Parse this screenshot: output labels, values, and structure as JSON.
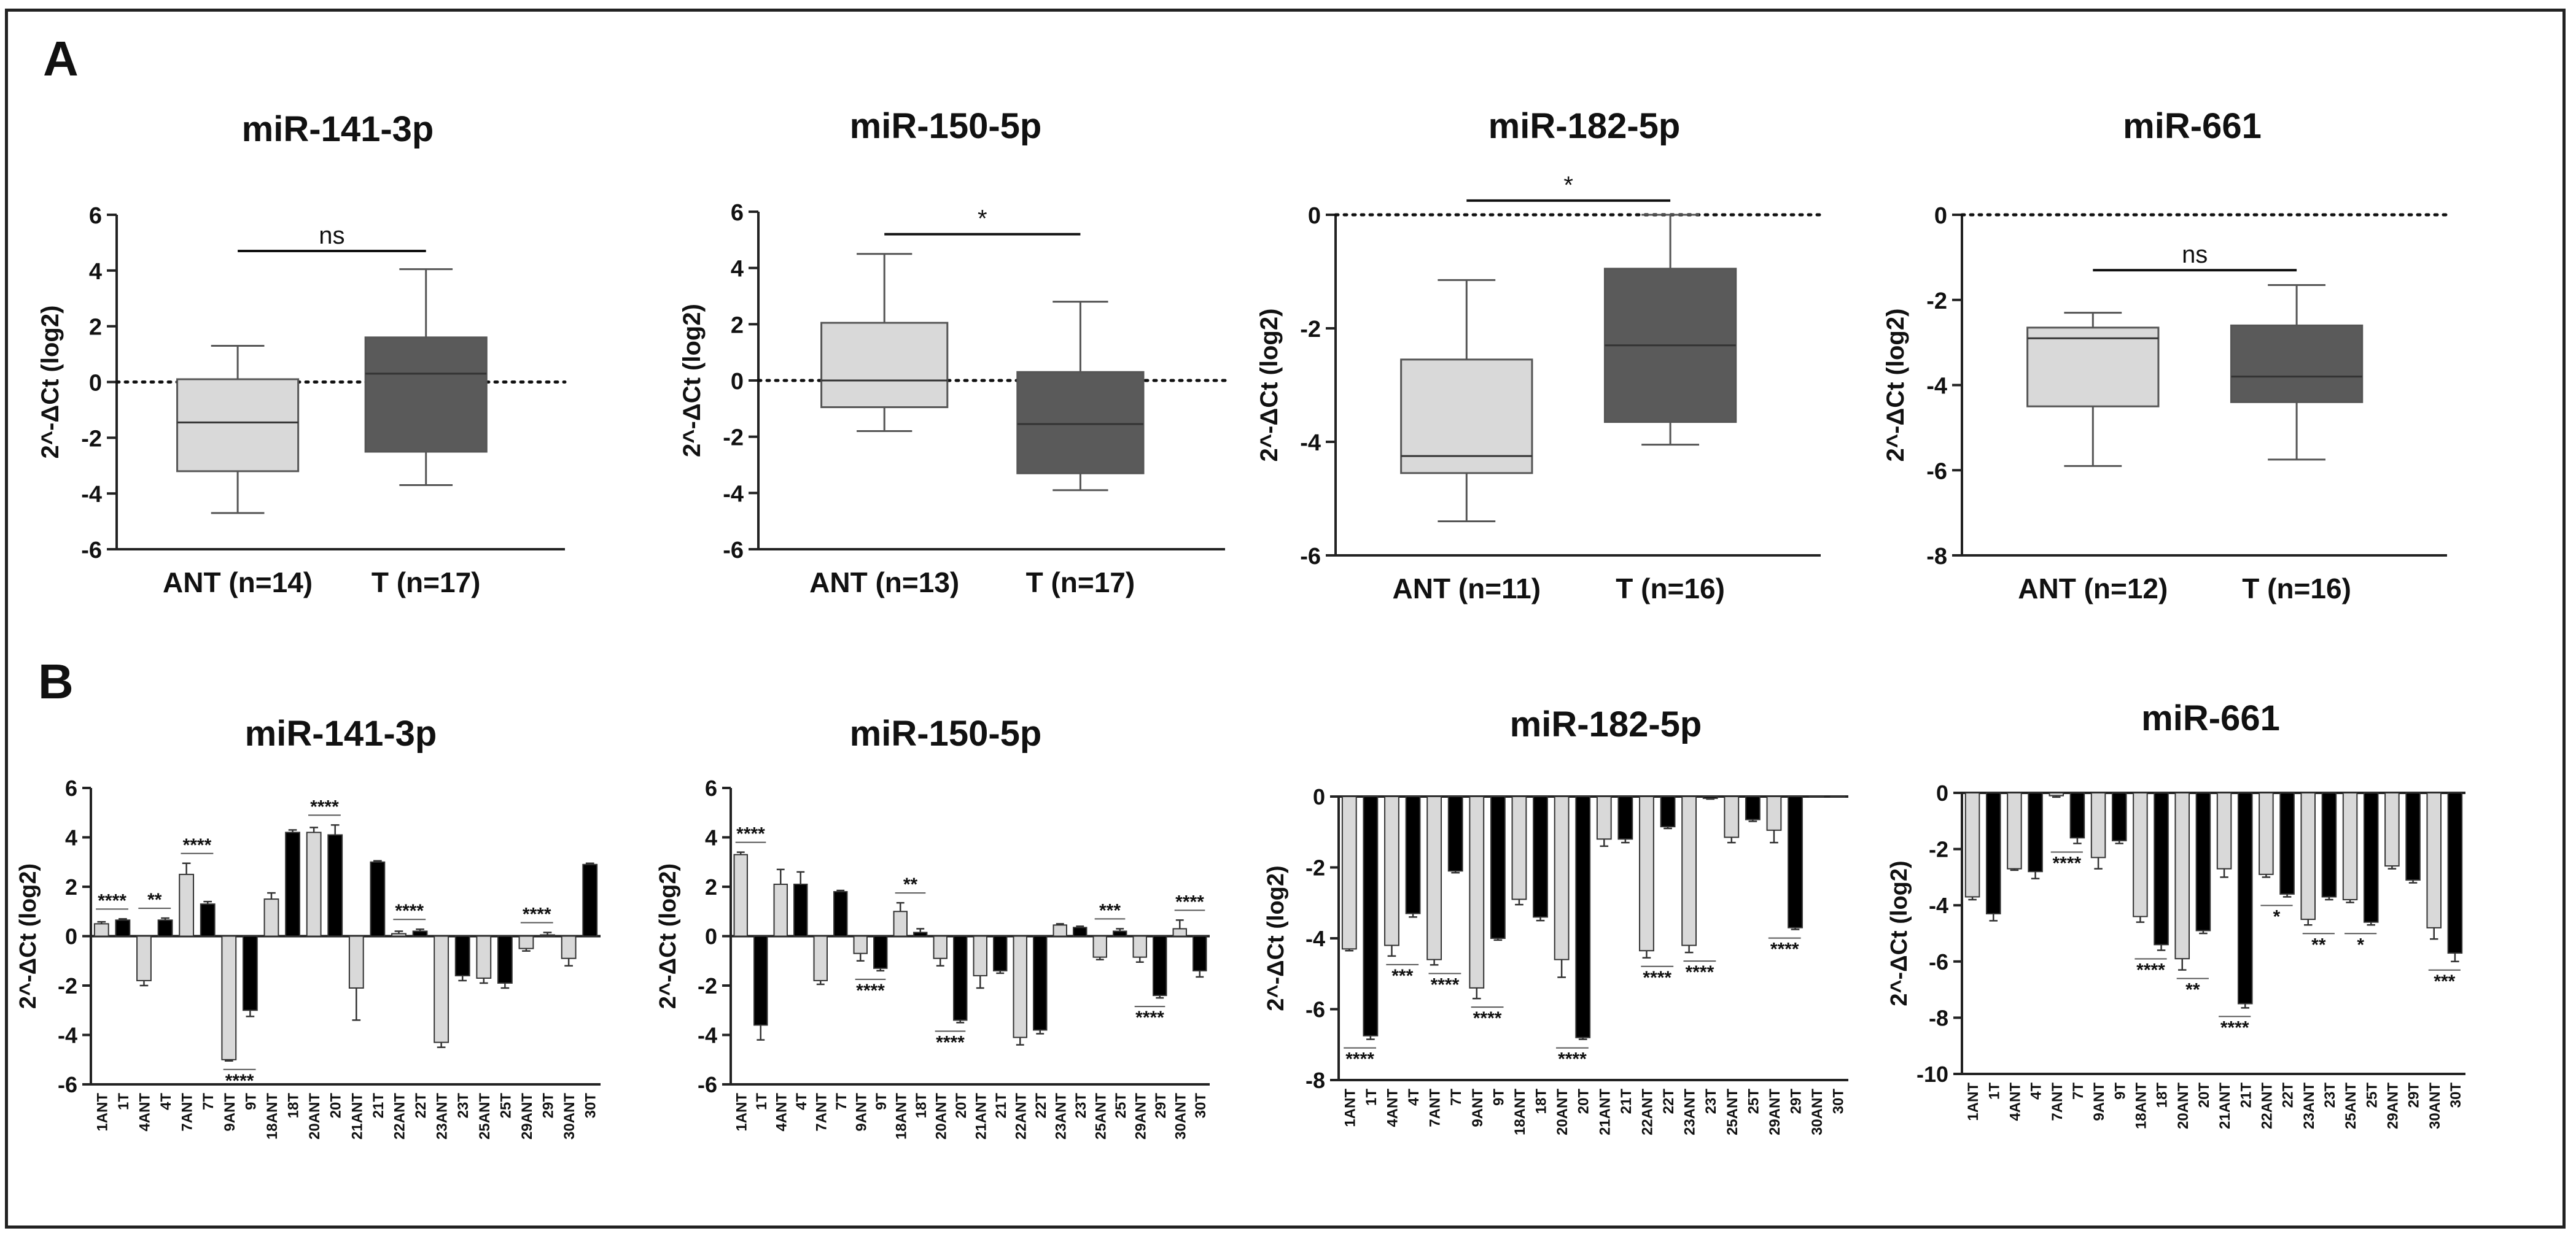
{
  "figure": {
    "panel_a_letter": "A",
    "panel_b_letter": "B",
    "y_axis_label": "2^-ΔCt (log2)"
  },
  "colors": {
    "ant_box": "#d9d9d9",
    "t_box": "#5a5a5a",
    "ant_bar": "#d9d9d9",
    "t_bar": "#000000",
    "axis": "#222222"
  },
  "chart_data": [
    {
      "type": "box",
      "panel": "A",
      "title": "miR-141-3p",
      "ylabel": "2^-ΔCt (log2)",
      "ylim": [
        -6,
        6
      ],
      "yticks": [
        6,
        4,
        2,
        0,
        -2,
        -4,
        -6
      ],
      "reference_line": 0,
      "categories": [
        "ANT (n=14)",
        "T (n=17)"
      ],
      "boxes": [
        {
          "name": "ANT (n=14)",
          "min": -4.7,
          "q1": -3.2,
          "median": -1.45,
          "q3": 0.1,
          "max": 1.3
        },
        {
          "name": "T (n=17)",
          "min": -3.7,
          "q1": -2.5,
          "median": 0.3,
          "q3": 1.6,
          "max": 4.05
        }
      ],
      "significance": {
        "label": "ns",
        "y": 4.7
      }
    },
    {
      "type": "box",
      "panel": "A",
      "title": "miR-150-5p",
      "ylabel": "2^-ΔCt (log2)",
      "ylim": [
        -6,
        6
      ],
      "yticks": [
        6,
        4,
        2,
        0,
        -2,
        -4,
        -6
      ],
      "reference_line": 0,
      "categories": [
        "ANT (n=13)",
        "T (n=17)"
      ],
      "boxes": [
        {
          "name": "ANT (n=13)",
          "min": -1.8,
          "q1": -0.95,
          "median": 0.0,
          "q3": 2.05,
          "max": 4.5
        },
        {
          "name": "T (n=17)",
          "min": -3.9,
          "q1": -3.3,
          "median": -1.55,
          "q3": 0.3,
          "max": 2.8
        }
      ],
      "significance": {
        "label": "*",
        "y": 5.2
      }
    },
    {
      "type": "box",
      "panel": "A",
      "title": "miR-182-5p",
      "ylabel": "2^-ΔCt (log2)",
      "ylim": [
        -6,
        0
      ],
      "yticks": [
        0,
        -2,
        -4,
        -6
      ],
      "reference_line": 0,
      "categories": [
        "ANT (n=11)",
        "T (n=16)"
      ],
      "boxes": [
        {
          "name": "ANT (n=11)",
          "min": -5.4,
          "q1": -4.55,
          "median": -4.25,
          "q3": -2.55,
          "max": -1.15
        },
        {
          "name": "T (n=16)",
          "min": -4.05,
          "q1": -3.65,
          "median": -2.3,
          "q3": -0.95,
          "max": 0.0
        }
      ],
      "significance": {
        "label": "*",
        "y": 0.25
      }
    },
    {
      "type": "box",
      "panel": "A",
      "title": "miR-661",
      "ylabel": "2^-ΔCt (log2)",
      "ylim": [
        -8,
        0
      ],
      "yticks": [
        0,
        -2,
        -4,
        -6,
        -8
      ],
      "reference_line": 0,
      "categories": [
        "ANT (n=12)",
        "T (n=16)"
      ],
      "boxes": [
        {
          "name": "ANT (n=12)",
          "min": -5.9,
          "q1": -4.5,
          "median": -2.9,
          "q3": -2.65,
          "max": -2.3
        },
        {
          "name": "T (n=16)",
          "min": -5.75,
          "q1": -4.4,
          "median": -3.8,
          "q3": -2.6,
          "max": -1.65
        }
      ],
      "significance": {
        "label": "ns",
        "y": -1.3
      }
    },
    {
      "type": "bar",
      "panel": "B",
      "title": "miR-141-3p",
      "ylabel": "2^-ΔCt (log2)",
      "ylim": [
        -6,
        6
      ],
      "yticks": [
        6,
        4,
        2,
        0,
        -2,
        -4,
        -6
      ],
      "categories": [
        "1ANT",
        "1T",
        "4ANT",
        "4T",
        "7ANT",
        "7T",
        "9ANT",
        "9T",
        "18ANT",
        "18T",
        "20ANT",
        "20T",
        "21ANT",
        "21T",
        "22ANT",
        "22T",
        "23ANT",
        "23T",
        "25ANT",
        "25T",
        "29ANT",
        "29T",
        "30ANT",
        "30T"
      ],
      "values": [
        0.5,
        0.65,
        -1.8,
        0.65,
        2.5,
        1.3,
        -5.0,
        -3.0,
        1.5,
        4.2,
        4.2,
        4.1,
        -2.1,
        3.0,
        0.1,
        0.2,
        -4.3,
        -1.6,
        -1.7,
        -1.9,
        -0.5,
        0.05,
        -0.9,
        2.9
      ],
      "errors": [
        0.08,
        0.05,
        0.2,
        0.08,
        0.45,
        0.1,
        0.05,
        0.25,
        0.25,
        0.1,
        0.2,
        0.4,
        1.3,
        0.05,
        0.1,
        0.08,
        0.2,
        0.2,
        0.2,
        0.2,
        0.1,
        0.1,
        0.3,
        0.05
      ],
      "significance": [
        {
          "pair": 1,
          "label": "****"
        },
        {
          "pair": 2,
          "label": "**"
        },
        {
          "pair": 3,
          "label": "****"
        },
        {
          "pair": 4,
          "label": "****"
        },
        {
          "pair": 6,
          "label": "****"
        },
        {
          "pair": 8,
          "label": "****"
        },
        {
          "pair": 11,
          "label": "****"
        }
      ]
    },
    {
      "type": "bar",
      "panel": "B",
      "title": "miR-150-5p",
      "ylabel": "2^-ΔCt (log2)",
      "ylim": [
        -6,
        6
      ],
      "yticks": [
        6,
        4,
        2,
        0,
        -2,
        -4,
        -6
      ],
      "categories": [
        "1ANT",
        "1T",
        "4ANT",
        "4T",
        "7ANT",
        "7T",
        "9ANT",
        "9T",
        "18ANT",
        "18T",
        "20ANT",
        "20T",
        "21ANT",
        "21T",
        "22ANT",
        "22T",
        "23ANT",
        "23T",
        "25ANT",
        "25T",
        "29ANT",
        "29T",
        "30ANT",
        "30T"
      ],
      "values": [
        3.3,
        -3.6,
        2.1,
        2.1,
        -1.8,
        1.8,
        -0.7,
        -1.3,
        1.0,
        0.15,
        -0.9,
        -3.4,
        -1.6,
        -1.4,
        -4.1,
        -3.8,
        0.45,
        0.35,
        -0.85,
        0.2,
        -0.85,
        -2.4,
        0.3,
        -1.4
      ],
      "errors": [
        0.1,
        0.6,
        0.6,
        0.5,
        0.15,
        0.05,
        0.3,
        0.1,
        0.35,
        0.15,
        0.3,
        0.1,
        0.5,
        0.1,
        0.3,
        0.15,
        0.05,
        0.05,
        0.1,
        0.1,
        0.2,
        0.1,
        0.35,
        0.25
      ],
      "significance": [
        {
          "pair": 1,
          "label": "****"
        },
        {
          "pair": 4,
          "label": "****"
        },
        {
          "pair": 5,
          "label": "**"
        },
        {
          "pair": 6,
          "label": "****"
        },
        {
          "pair": 10,
          "label": "***"
        },
        {
          "pair": 11,
          "label": "****"
        },
        {
          "pair": 12,
          "label": "****"
        }
      ]
    },
    {
      "type": "bar",
      "panel": "B",
      "title": "miR-182-5p",
      "ylabel": "2^-ΔCt (log2)",
      "ylim": [
        -8,
        0
      ],
      "yticks": [
        0,
        -2,
        -4,
        -6,
        -8
      ],
      "categories": [
        "1ANT",
        "1T",
        "4ANT",
        "4T",
        "7ANT",
        "7T",
        "9ANT",
        "9T",
        "18ANT",
        "18T",
        "20ANT",
        "20T",
        "21ANT",
        "21T",
        "22ANT",
        "22T",
        "23ANT",
        "23T",
        "25ANT",
        "25T",
        "29ANT",
        "29T",
        "30ANT",
        "30T"
      ],
      "values": [
        -4.3,
        -6.75,
        -4.2,
        -3.3,
        -4.6,
        -2.1,
        -5.4,
        -4.0,
        -2.9,
        -3.4,
        -4.6,
        -6.8,
        -1.2,
        -1.2,
        -4.35,
        -0.85,
        -4.2,
        -0.05,
        -1.15,
        -0.65,
        -0.95,
        -3.7,
        0,
        0
      ],
      "errors": [
        0.05,
        0.1,
        0.3,
        0.1,
        0.15,
        0.05,
        0.3,
        0.05,
        0.15,
        0.1,
        0.5,
        0.05,
        0.2,
        0.1,
        0.2,
        0.05,
        0.2,
        0.02,
        0.15,
        0.05,
        0.35,
        0.05,
        0,
        0
      ],
      "significance": [
        {
          "pair": 1,
          "label": "****"
        },
        {
          "pair": 2,
          "label": "***"
        },
        {
          "pair": 3,
          "label": "****"
        },
        {
          "pair": 4,
          "label": "****"
        },
        {
          "pair": 6,
          "label": "****"
        },
        {
          "pair": 8,
          "label": "****"
        },
        {
          "pair": 9,
          "label": "****"
        },
        {
          "pair": 11,
          "label": "****"
        }
      ]
    },
    {
      "type": "bar",
      "panel": "B",
      "title": "miR-661",
      "ylabel": "2^-ΔCt (log2)",
      "ylim": [
        -10,
        0
      ],
      "yticks": [
        0,
        -2,
        -4,
        -6,
        -8,
        -10
      ],
      "categories": [
        "1ANT",
        "1T",
        "4ANT",
        "4T",
        "7ANT",
        "7T",
        "9ANT",
        "9T",
        "18ANT",
        "18T",
        "20ANT",
        "20T",
        "21ANT",
        "21T",
        "22ANT",
        "22T",
        "23ANT",
        "23T",
        "25ANT",
        "25T",
        "29ANT",
        "29T",
        "30ANT",
        "30T"
      ],
      "values": [
        -3.7,
        -4.3,
        -2.7,
        -2.8,
        -0.1,
        -1.6,
        -2.3,
        -1.7,
        -4.4,
        -5.4,
        -5.9,
        -4.9,
        -2.7,
        -7.5,
        -2.9,
        -3.6,
        -4.5,
        -3.7,
        -3.8,
        -4.6,
        -2.6,
        -3.1,
        -4.8,
        -5.7
      ],
      "errors": [
        0.1,
        0.25,
        0.05,
        0.25,
        0.05,
        0.2,
        0.4,
        0.1,
        0.2,
        0.2,
        0.4,
        0.1,
        0.3,
        0.15,
        0.1,
        0.1,
        0.2,
        0.1,
        0.1,
        0.1,
        0.1,
        0.1,
        0.4,
        0.3
      ],
      "significance": [
        {
          "pair": 3,
          "label": "****"
        },
        {
          "pair": 5,
          "label": "****"
        },
        {
          "pair": 6,
          "label": "**"
        },
        {
          "pair": 7,
          "label": "****"
        },
        {
          "pair": 8,
          "label": "*"
        },
        {
          "pair": 9,
          "label": "**"
        },
        {
          "pair": 10,
          "label": "*"
        },
        {
          "pair": 12,
          "label": "***"
        }
      ]
    }
  ]
}
